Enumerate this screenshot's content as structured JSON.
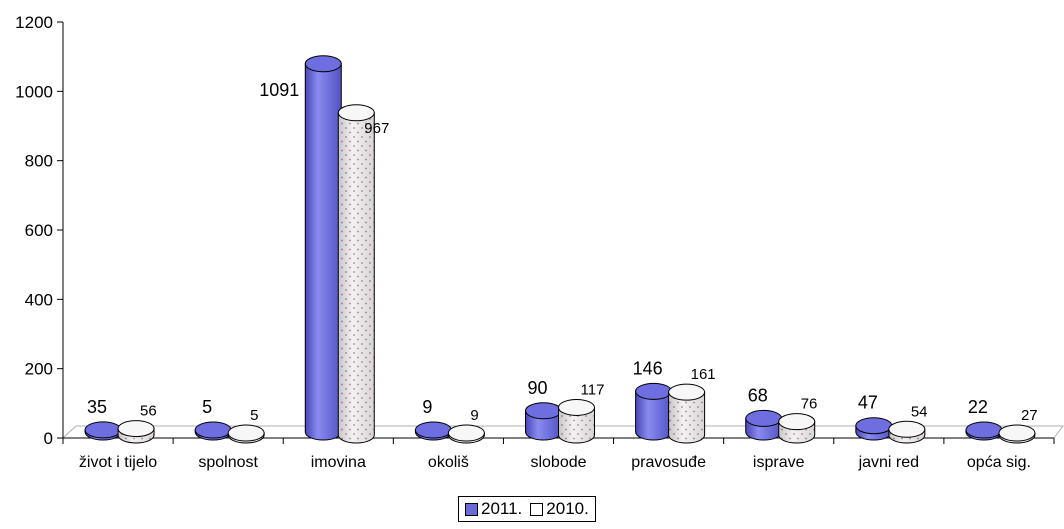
{
  "chart_data": {
    "type": "bar",
    "categories": [
      "život i tijelo",
      "spolnost",
      "imovina",
      "okoliš",
      "slobode",
      "pravosuđe",
      "isprave",
      "javni red",
      "opća sig."
    ],
    "series": [
      {
        "name": "2011.",
        "values": [
          35,
          5,
          1091,
          9,
          90,
          146,
          68,
          47,
          22
        ],
        "color": "#6b6bd6"
      },
      {
        "name": "2010.",
        "values": [
          56,
          5,
          967,
          9,
          117,
          161,
          76,
          54,
          27
        ],
        "color": "#eeeeee"
      }
    ],
    "ylim": [
      0,
      1200
    ],
    "yticks": [
      "0",
      "200",
      "400",
      "600",
      "800",
      "1000",
      "1200"
    ],
    "legend": "bottom",
    "grid": false,
    "style": "3d-cylinder"
  }
}
